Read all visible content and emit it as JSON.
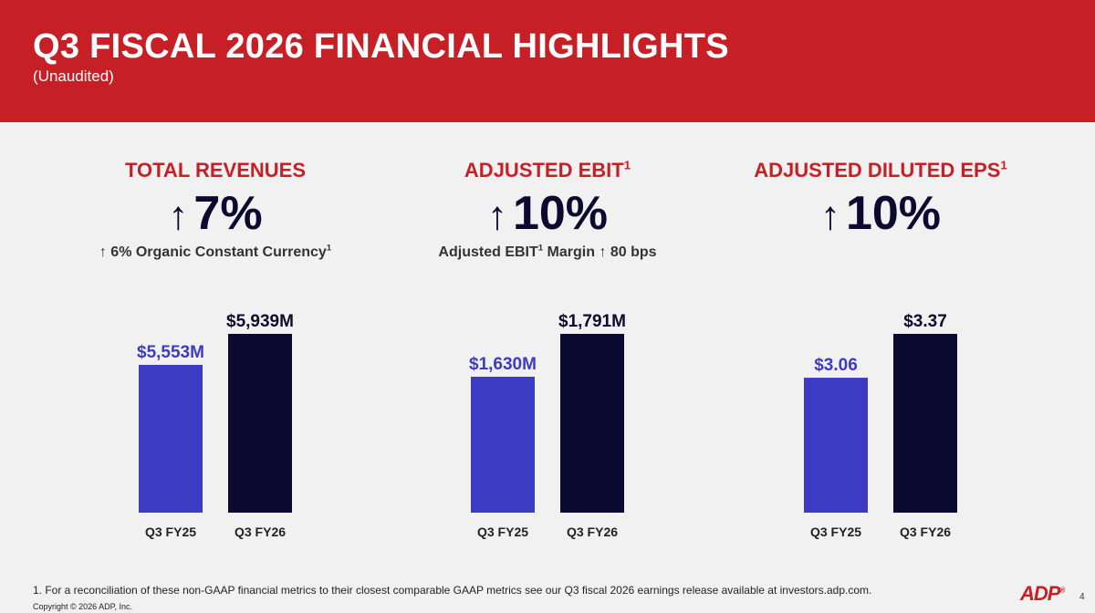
{
  "header": {
    "title": "Q3 FISCAL 2026 FINANCIAL HIGHLIGHTS",
    "subtitle": "(Unaudited)"
  },
  "metrics": [
    {
      "title": "TOTAL REVENUES",
      "title_sup": "",
      "arrow": "↑",
      "value": "7%",
      "sub_pre": "↑ 6% Organic Constant Currency",
      "sub_sup": "1",
      "sub_post": ""
    },
    {
      "title": "ADJUSTED EBIT",
      "title_sup": "1",
      "arrow": "↑",
      "value": "10%",
      "sub_pre": "Adjusted EBIT",
      "sub_sup": "1",
      "sub_post": " Margin ↑ 80 bps"
    },
    {
      "title": "ADJUSTED DILUTED EPS",
      "title_sup": "1",
      "arrow": "↑",
      "value": "10%",
      "sub_pre": "",
      "sub_sup": "",
      "sub_post": ""
    }
  ],
  "colors": {
    "brand_red": "#c62026",
    "bar_prior": "#3b3bc4",
    "bar_current": "#0c0a2e"
  },
  "chart_data": [
    {
      "type": "bar",
      "categories": [
        "Q3 FY25",
        "Q3 FY26"
      ],
      "values": [
        5553,
        5939
      ],
      "labels": [
        "$5,553M",
        "$5,939M"
      ],
      "title": "TOTAL REVENUES"
    },
    {
      "type": "bar",
      "categories": [
        "Q3 FY25",
        "Q3 FY26"
      ],
      "values": [
        1630,
        1791
      ],
      "labels": [
        "$1,630M",
        "$1,791M"
      ],
      "title": "ADJUSTED EBIT"
    },
    {
      "type": "bar",
      "categories": [
        "Q3 FY25",
        "Q3 FY26"
      ],
      "values": [
        3.06,
        3.37
      ],
      "labels": [
        "$3.06",
        "$3.37"
      ],
      "title": "ADJUSTED DILUTED EPS"
    }
  ],
  "footer": {
    "footnote": "1.  For a reconciliation of these non-GAAP financial metrics to their closest comparable GAAP metrics see our Q3 fiscal 2026 earnings release available at investors.adp.com.",
    "copyright": "Copyright © 2026 ADP, Inc.",
    "logo": "ADP",
    "logo_mark": "®",
    "page_number": "4"
  }
}
